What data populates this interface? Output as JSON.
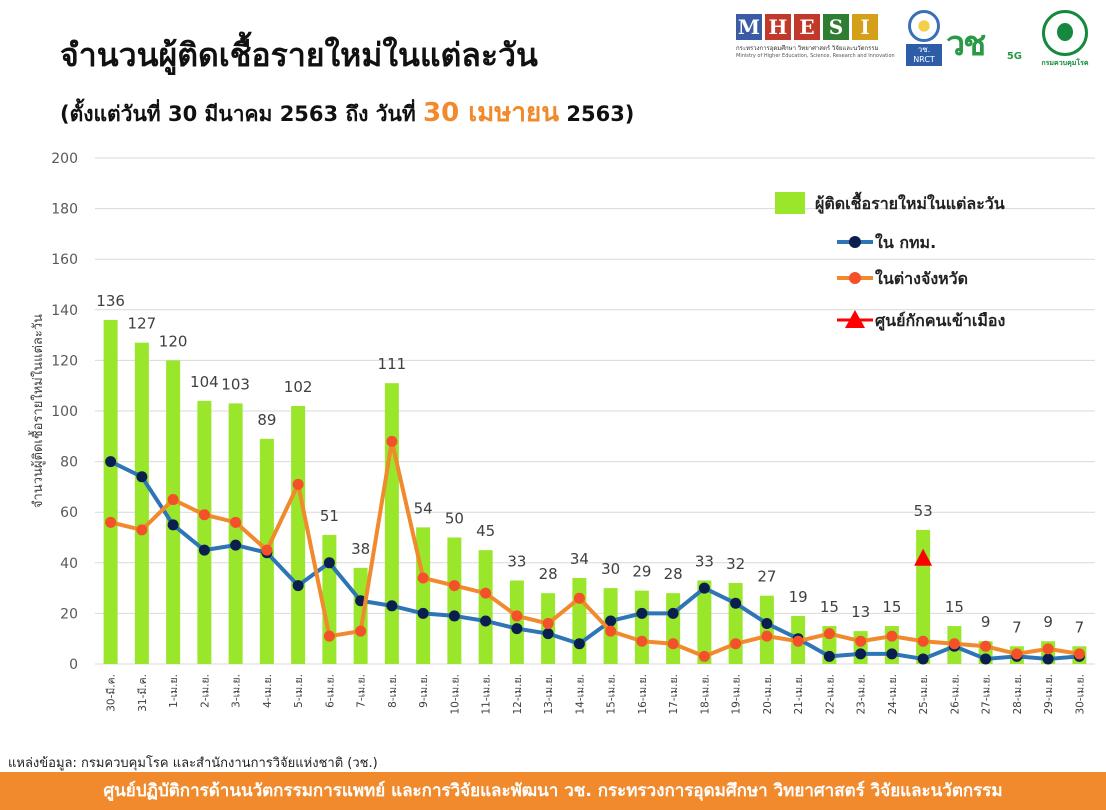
{
  "header": {
    "title": "จำนวนผู้ติดเชื้อรายใหม่ในแต่ละวัน",
    "subtitle_prefix": "(ตั้งแต่วันที่ 30 มีนาคม 2563 ถึง วันที่",
    "subtitle_highlight": "30 เมษายน",
    "subtitle_suffix": "2563)",
    "highlight_color": "#f08a2c"
  },
  "logos": {
    "mhesi_letters": [
      "M",
      "H",
      "E",
      "S",
      "I"
    ],
    "mhesi_colors": [
      "#3b5ba5",
      "#c0392b",
      "#c0392b",
      "#2e7d32",
      "#d4a017"
    ],
    "mhesi_line1": "กระทรวงการอุดมศึกษา วิทยาศาสตร์ วิจัยและนวัตกรรม",
    "mhesi_line2": "Ministry of Higher Education, Science, Research and Innovation",
    "nrct_label": "วช.",
    "nrct_sub": "NRCT",
    "fiveg_main": "วช",
    "fiveg_sub": "5G",
    "moph_label": "กรมควบคุมโรค",
    "icons": [
      "mhesi-logo",
      "nrct-logo",
      "5g-logo",
      "ddc-logo"
    ]
  },
  "chart_data": {
    "type": "bar",
    "ylabel": "จำนวนผู้ติดเชื้อรายใหม่ในแต่ละวัน",
    "ylim": [
      0,
      200
    ],
    "yticks": [
      0,
      20,
      40,
      60,
      80,
      100,
      120,
      140,
      160,
      180,
      200
    ],
    "grid": true,
    "legend_position": "top-right",
    "categories": [
      "30-มี.ค.",
      "31-มี.ค.",
      "1-เม.ย.",
      "2-เม.ย.",
      "3-เม.ย.",
      "4-เม.ย.",
      "5-เม.ย.",
      "6-เม.ย.",
      "7-เม.ย.",
      "8-เม.ย.",
      "9-เม.ย.",
      "10-เม.ย.",
      "11-เม.ย.",
      "12-เม.ย.",
      "13-เม.ย.",
      "14-เม.ย.",
      "15-เม.ย.",
      "16-เม.ย.",
      "17-เม.ย.",
      "18-เม.ย.",
      "19-เม.ย.",
      "20-เม.ย.",
      "21-เม.ย.",
      "22-เม.ย.",
      "23-เม.ย.",
      "24-เม.ย.",
      "25-เม.ย.",
      "26-เม.ย.",
      "27-เม.ย.",
      "28-เม.ย.",
      "29-เม.ย.",
      "30-เม.ย."
    ],
    "series": [
      {
        "name": "ผู้ติดเชื้อรายใหม่ในแต่ละวัน",
        "type": "bar",
        "color": "#99e62b",
        "values": [
          136,
          127,
          120,
          104,
          103,
          89,
          102,
          51,
          38,
          111,
          54,
          50,
          45,
          33,
          28,
          34,
          30,
          29,
          28,
          33,
          32,
          27,
          19,
          15,
          13,
          15,
          53,
          15,
          9,
          7,
          9,
          7
        ]
      },
      {
        "name": "ใน กทม.",
        "type": "line",
        "color": "#2e75b6",
        "marker_color": "#0a1f4d",
        "values": [
          80,
          74,
          55,
          45,
          47,
          44,
          31,
          40,
          25,
          23,
          20,
          19,
          17,
          14,
          12,
          8,
          17,
          20,
          20,
          30,
          24,
          16,
          10,
          3,
          4,
          4,
          2,
          7,
          2,
          3,
          2,
          3
        ]
      },
      {
        "name": "ในต่างจังหวัด",
        "type": "line",
        "color": "#f08a2c",
        "marker_color": "#f4502a",
        "values": [
          56,
          53,
          65,
          59,
          56,
          45,
          71,
          11,
          13,
          88,
          34,
          31,
          28,
          19,
          16,
          26,
          13,
          9,
          8,
          3,
          8,
          11,
          9,
          12,
          9,
          11,
          9,
          8,
          7,
          4,
          6,
          4
        ]
      },
      {
        "name": "ศูนย์กักคนเข้าเมือง",
        "type": "point",
        "color": "#ff0000",
        "category": "25-เม.ย.",
        "value": 42
      }
    ]
  },
  "source": "แหล่งข้อมูล: กรมควบคุมโรค และสำนักงานการวิจัยแห่งชาติ (วช.)",
  "footer": "ศูนย์ปฏิบัติการด้านนวัตกรรมการแพทย์ และการวิจัยและพัฒนา วช. กระทรวงการอุดมศึกษา วิทยาศาสตร์ วิจัยและนวัตกรรม"
}
